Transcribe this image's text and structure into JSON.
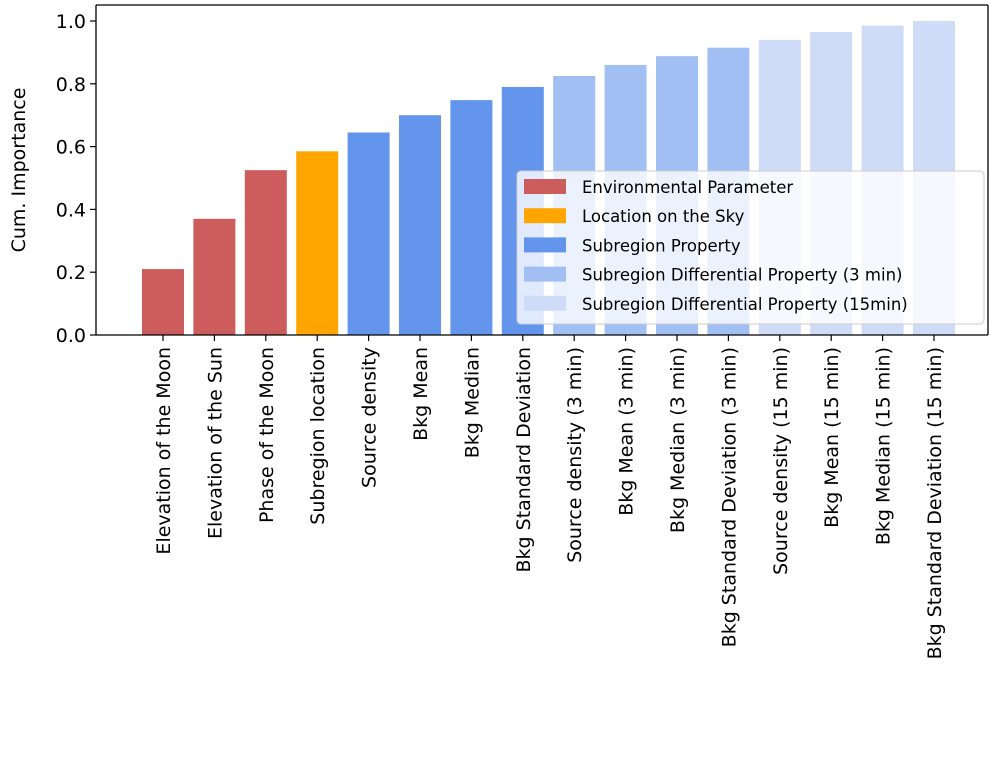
{
  "chart_data": {
    "type": "bar",
    "title": "",
    "xlabel": "",
    "ylabel": "Cum. Importance",
    "ylim": [
      0.0,
      1.0
    ],
    "yticks": [
      "0.0",
      "0.2",
      "0.4",
      "0.6",
      "0.8",
      "1.0"
    ],
    "grid": false,
    "legend_position": "center-right",
    "categories": [
      "Elevation of the Moon",
      "Elevation of the Sun",
      "Phase of the Moon",
      "Subregion location",
      "Source density",
      "Bkg Mean",
      "Bkg Median",
      "Bkg Standard Deviation",
      "Source density (3 min)",
      "Bkg Mean (3 min)",
      "Bkg Median (3 min)",
      "Bkg Standard Deviation (3 min)",
      "Source density (15 min)",
      "Bkg Mean (15 min)",
      "Bkg Median (15 min)",
      "Bkg Standard Deviation (15 min)"
    ],
    "values": [
      0.21,
      0.37,
      0.525,
      0.585,
      0.645,
      0.7,
      0.748,
      0.79,
      0.825,
      0.86,
      0.888,
      0.915,
      0.94,
      0.965,
      0.985,
      1.0
    ],
    "groups": [
      0,
      0,
      0,
      1,
      2,
      2,
      2,
      2,
      3,
      3,
      3,
      3,
      4,
      4,
      4,
      4
    ],
    "legend": [
      {
        "label": "Environmental Parameter",
        "color": "#cd5c5c"
      },
      {
        "label": "Location on the Sky",
        "color": "#ffa500"
      },
      {
        "label": "Subregion Property",
        "color": "#6495ed"
      },
      {
        "label": "Subregion Differential Property (3 min)",
        "color": "#a2bff3"
      },
      {
        "label": "Subregion Differential Property (15min)",
        "color": "#cfdcf8"
      }
    ]
  }
}
